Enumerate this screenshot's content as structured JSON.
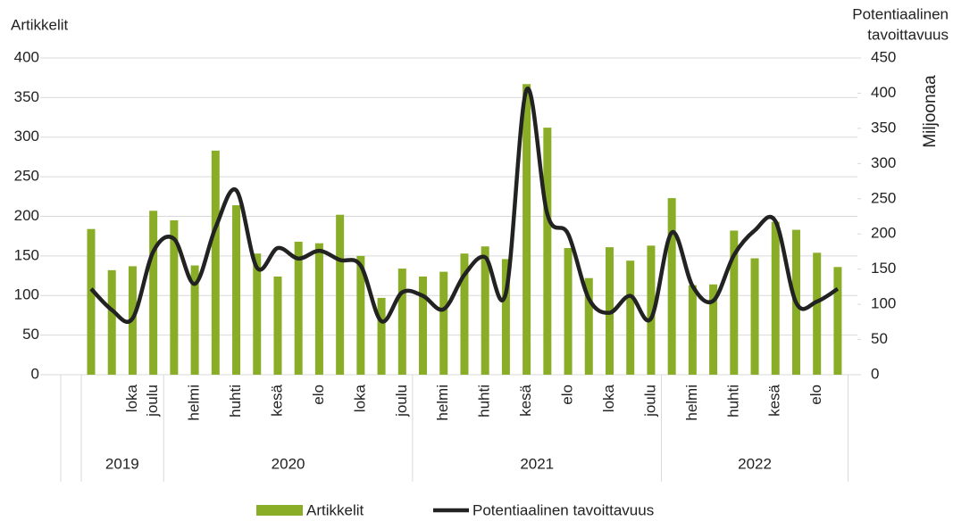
{
  "chart_data": {
    "type": "bar_line",
    "ylabel": "Artikkelit",
    "y2label_lines": [
      "Potentiaalinen",
      "tavoittavuus"
    ],
    "y2unit": "Miljoonaa",
    "categories": [
      null,
      null,
      "loka",
      "joulu",
      null,
      "helmi",
      null,
      "huhti",
      null,
      "kesä",
      null,
      "elo",
      null,
      "loka",
      null,
      "joulu",
      null,
      "helmi",
      null,
      "huhti",
      null,
      "kesä",
      null,
      "elo",
      null,
      "loka",
      null,
      "joulu",
      null,
      "helmi",
      null,
      "huhti",
      null,
      "kesä",
      null,
      "elo",
      null
    ],
    "x_groups": [
      {
        "label": "2019",
        "count": 4
      },
      {
        "label": "2020",
        "count": 12
      },
      {
        "label": "2021",
        "count": 12
      },
      {
        "label": "2022",
        "count": 9
      }
    ],
    "series": [
      {
        "name": "Artikkelit",
        "color": "#8aad27",
        "axis": "y",
        "values": [
          184,
          132,
          137,
          207,
          195,
          138,
          283,
          214,
          153,
          124,
          168,
          166,
          202,
          150,
          97,
          134,
          124,
          130,
          153,
          162,
          146,
          367,
          312,
          160,
          122,
          161,
          144,
          163,
          223,
          113,
          114,
          182,
          147,
          193,
          183,
          154,
          136
        ]
      },
      {
        "name": "Potentiaalinen tavoittavuus",
        "color": "#222222",
        "axis": "y2",
        "values": [
          122,
          92,
          80,
          175,
          193,
          129,
          209,
          262,
          152,
          180,
          165,
          176,
          163,
          155,
          76,
          117,
          112,
          93,
          142,
          167,
          116,
          405,
          228,
          200,
          108,
          88,
          112,
          80,
          202,
          126,
          105,
          170,
          205,
          218,
          102,
          104,
          122
        ]
      }
    ],
    "ylim": [
      0,
      400
    ],
    "yticks": [
      0,
      50,
      100,
      150,
      200,
      250,
      300,
      350,
      400
    ],
    "y2lim": [
      0,
      450
    ],
    "y2ticks": [
      0,
      50,
      100,
      150,
      200,
      250,
      300,
      350,
      400,
      450
    ],
    "grid": true
  }
}
